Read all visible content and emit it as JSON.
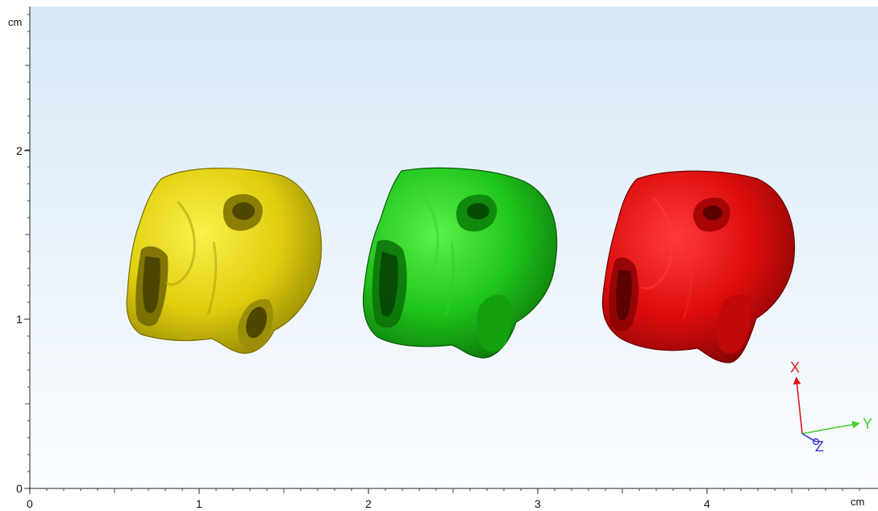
{
  "viewer": {
    "x_unit": "cm",
    "y_unit": "cm",
    "x_ticks": [
      "0",
      "1",
      "2",
      "3",
      "4"
    ],
    "y_ticks": [
      "0",
      "1",
      "2"
    ]
  },
  "models": [
    {
      "name": "yellow",
      "color": "#e7d90e"
    },
    {
      "name": "green",
      "color": "#22cf1a"
    },
    {
      "name": "red",
      "color": "#e30d0d"
    }
  ],
  "orientation_triad": {
    "x_label": "X",
    "y_label": "Y",
    "z_label": "Z",
    "x_color": "#e01818",
    "y_color": "#43d02b",
    "z_color": "#3a3ad0"
  }
}
